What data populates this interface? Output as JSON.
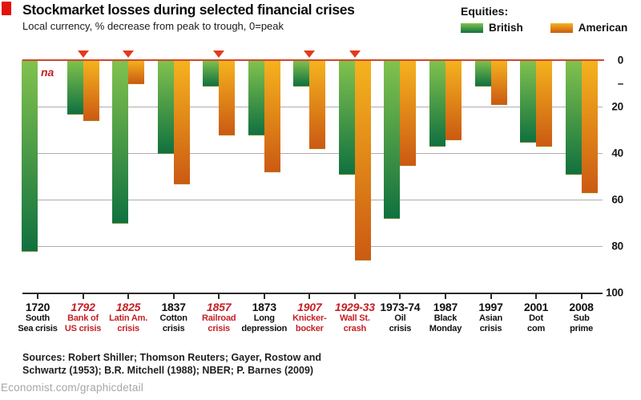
{
  "header": {
    "title": "Stockmarket losses during selected financial crises",
    "subtitle": "Local currency, % decrease from peak to trough, 0=peak"
  },
  "legend": {
    "title": "Equities:",
    "items": [
      {
        "label": "British"
      },
      {
        "label": "American"
      }
    ]
  },
  "chart_data": {
    "type": "bar",
    "title": "Stockmarket losses during selected financial crises",
    "subtitle": "Local currency, % decrease from peak to trough, 0=peak",
    "value_axis": {
      "min": 0,
      "max": 100,
      "inverted": true,
      "side": "right",
      "tick_labels": [
        {
          "label": "0",
          "value": 0
        },
        {
          "label": "–",
          "value": 10
        },
        {
          "label": "20",
          "value": 20
        },
        {
          "label": "40",
          "value": 40
        },
        {
          "label": "60",
          "value": 60
        },
        {
          "label": "80",
          "value": 80
        },
        {
          "label": "100",
          "value": 100
        }
      ],
      "gridline_values": [
        20,
        40,
        60,
        80
      ]
    },
    "categories": [
      {
        "year": "1720",
        "name_lines": [
          "South",
          "Sea crisis"
        ],
        "red": false,
        "marker": false
      },
      {
        "year": "1792",
        "name_lines": [
          "Bank of",
          "US crisis"
        ],
        "red": true,
        "marker": true
      },
      {
        "year": "1825",
        "name_lines": [
          "Latin Am.",
          "crisis"
        ],
        "red": true,
        "marker": true
      },
      {
        "year": "1837",
        "name_lines": [
          "Cotton",
          "crisis"
        ],
        "red": false,
        "marker": false
      },
      {
        "year": "1857",
        "name_lines": [
          "Railroad",
          "crisis"
        ],
        "red": true,
        "marker": true
      },
      {
        "year": "1873",
        "name_lines": [
          "Long",
          "depression"
        ],
        "red": false,
        "marker": false
      },
      {
        "year": "1907",
        "name_lines": [
          "Knicker-",
          "bocker"
        ],
        "red": true,
        "marker": true
      },
      {
        "year": "1929-33",
        "name_lines": [
          "Wall St.",
          "crash"
        ],
        "red": true,
        "marker": true
      },
      {
        "year": "1973-74",
        "name_lines": [
          "Oil",
          "crisis"
        ],
        "red": false,
        "marker": false
      },
      {
        "year": "1987",
        "name_lines": [
          "Black",
          "Monday"
        ],
        "red": false,
        "marker": false
      },
      {
        "year": "1997",
        "name_lines": [
          "Asian",
          "crisis"
        ],
        "red": false,
        "marker": false
      },
      {
        "year": "2001",
        "name_lines": [
          "Dot",
          "com"
        ],
        "red": false,
        "marker": false
      },
      {
        "year": "2008",
        "name_lines": [
          "Sub",
          "prime"
        ],
        "red": false,
        "marker": false
      }
    ],
    "series": [
      {
        "name": "British",
        "color_top": "#82c24e",
        "color_bottom": "#10713f",
        "values": [
          82,
          23,
          70,
          40,
          11,
          32,
          11,
          49,
          68,
          37,
          11,
          35,
          49
        ]
      },
      {
        "name": "American",
        "color_top": "#f5b31e",
        "color_bottom": "#cb5a13",
        "values": [
          null,
          26,
          10,
          53,
          32,
          48,
          38,
          86,
          45,
          34,
          19,
          37,
          57
        ]
      }
    ],
    "na_label": "na"
  },
  "sources": {
    "line1": "Sources: Robert Shiller; Thomson Reuters; Gayer, Rostow and",
    "line2": "Schwartz (1953); B.R. Mitchell (1988); NBER; P. Barnes (2009)"
  },
  "footer": {
    "text": "Economist.com/graphicdetail"
  },
  "colors": {
    "accent_red": "#e3120b",
    "highlight_red": "#c42025",
    "zero_line": "#cc4a2e",
    "marker": "#e23a1d",
    "gridline": "#adadad",
    "axis": "#2b2b2b",
    "footer_grey": "#a6a6a6"
  }
}
